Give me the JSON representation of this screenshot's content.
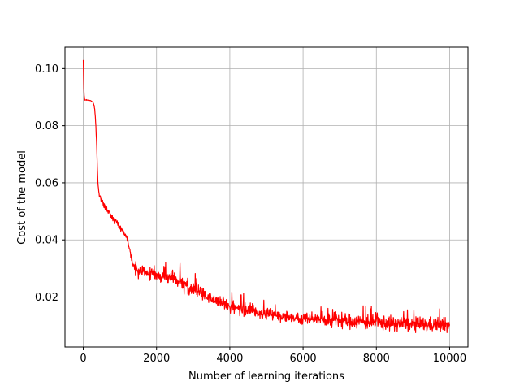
{
  "chart_data": {
    "type": "line",
    "title": "",
    "xlabel": "Number of learning iterations",
    "ylabel": "Cost of the model",
    "xlim": [
      -500,
      10500
    ],
    "ylim": [
      0.0025,
      0.1075
    ],
    "xticks": [
      0,
      2000,
      4000,
      6000,
      8000,
      10000
    ],
    "xtick_labels": [
      "0",
      "2000",
      "4000",
      "6000",
      "8000",
      "10000"
    ],
    "yticks": [
      0.02,
      0.04,
      0.06,
      0.08,
      0.1
    ],
    "ytick_labels": [
      "0.02",
      "0.04",
      "0.06",
      "0.08",
      "0.10"
    ],
    "grid": true,
    "series": [
      {
        "color": "#ff0000",
        "points": [
          [
            0,
            0.103
          ],
          [
            10,
            0.096
          ],
          [
            20,
            0.091
          ],
          [
            40,
            0.089
          ],
          [
            100,
            0.089
          ],
          [
            200,
            0.0888
          ],
          [
            260,
            0.0882
          ],
          [
            300,
            0.087
          ],
          [
            330,
            0.083
          ],
          [
            360,
            0.075
          ],
          [
            380,
            0.067
          ],
          [
            400,
            0.06
          ],
          [
            430,
            0.0565
          ],
          [
            470,
            0.0548
          ],
          [
            520,
            0.053
          ],
          [
            600,
            0.0515
          ],
          [
            700,
            0.0495
          ],
          [
            800,
            0.0478
          ],
          [
            900,
            0.0463
          ],
          [
            1000,
            0.0445
          ],
          [
            1100,
            0.0428
          ],
          [
            1180,
            0.041
          ],
          [
            1250,
            0.038
          ],
          [
            1300,
            0.0345
          ],
          [
            1350,
            0.0318
          ],
          [
            1420,
            0.0298
          ],
          [
            1500,
            0.029
          ],
          [
            1700,
            0.0283
          ],
          [
            2000,
            0.0276
          ],
          [
            2500,
            0.0262
          ],
          [
            3000,
            0.0225
          ],
          [
            3500,
            0.0195
          ],
          [
            4000,
            0.0165
          ],
          [
            4500,
            0.0152
          ],
          [
            5000,
            0.014
          ],
          [
            5500,
            0.0132
          ],
          [
            6000,
            0.0126
          ],
          [
            6500,
            0.0121
          ],
          [
            7000,
            0.0117
          ],
          [
            7500,
            0.0114
          ],
          [
            8000,
            0.011
          ],
          [
            8500,
            0.0107
          ],
          [
            9000,
            0.0104
          ],
          [
            9500,
            0.0102
          ],
          [
            10000,
            0.01
          ]
        ]
      }
    ]
  }
}
